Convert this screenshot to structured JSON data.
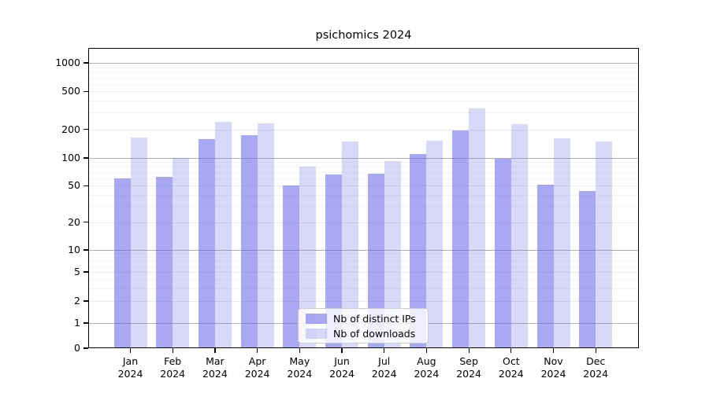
{
  "chart_data": {
    "type": "bar",
    "title": "psichomics 2024",
    "year": "2024",
    "months": [
      "Jan",
      "Feb",
      "Mar",
      "Apr",
      "May",
      "Jun",
      "Jul",
      "Aug",
      "Sep",
      "Oct",
      "Nov",
      "Dec"
    ],
    "series": [
      {
        "name": "Nb of distinct IPs",
        "color": "#a9a9f2",
        "color_rgba": "rgba(99,99,233,0.55)",
        "values": [
          60,
          63,
          157,
          175,
          50,
          66,
          68,
          110,
          193,
          98,
          51,
          44
        ]
      },
      {
        "name": "Nb of downloads",
        "color": "#d8d8f9",
        "color_rgba": "rgba(99,99,233,0.25)",
        "values": [
          163,
          100,
          238,
          230,
          81,
          150,
          92,
          152,
          330,
          225,
          160,
          148
        ]
      }
    ],
    "yticks": [
      0,
      1,
      2,
      5,
      10,
      20,
      50,
      100,
      200,
      500,
      1000
    ],
    "yscale": "log above 1, linear 0-1",
    "ylim": [
      0,
      1000
    ],
    "grid": true,
    "legend_position": "lower center",
    "axis_color": "#000000",
    "major_grid_color": "#b0b0b0",
    "mid_grid_color": "#e9e9e9",
    "minor_grid_color": "#f4f4f4",
    "major_grid_values": [
      1,
      10,
      100,
      1000
    ]
  }
}
